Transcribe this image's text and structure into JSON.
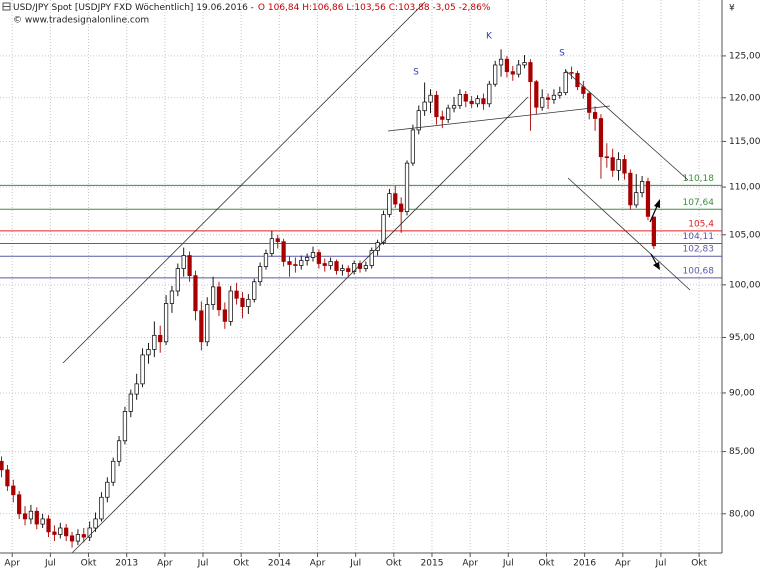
{
  "chart_data": {
    "type": "candlestick",
    "title": "USD/JPY Spot [USDJPY FXD  Wöchentlich] 19.06.2016 -",
    "quote": "O 106,84 H:106,86 L:103,56 C:103,88 -3,05 -2,86%",
    "source": "© www.tradesignalonline.com",
    "y_unit": "¥",
    "annotations": [
      "S",
      "K",
      "S"
    ],
    "x": [
      2012.18,
      2012.2185,
      2012.257,
      2012.2955,
      2012.334,
      2012.3725,
      2012.411,
      2012.4495,
      2012.488,
      2012.5265,
      2012.565,
      2012.6035,
      2012.642,
      2012.6805,
      2012.719,
      2012.7575,
      2012.796,
      2012.8345,
      2012.873,
      2012.9115,
      2012.95,
      2012.9885,
      2013.027,
      2013.0655,
      2013.104,
      2013.1425,
      2013.181,
      2013.2195,
      2013.258,
      2013.2965,
      2013.335,
      2013.3735,
      2013.412,
      2013.4505,
      2013.489,
      2013.5275,
      2013.566,
      2013.6045,
      2013.643,
      2013.6815,
      2013.72,
      2013.7585,
      2013.797,
      2013.8355,
      2013.874,
      2013.9125,
      2013.951,
      2013.9895,
      2014.028,
      2014.0665,
      2014.105,
      2014.1435,
      2014.182,
      2014.2205,
      2014.259,
      2014.2975,
      2014.336,
      2014.3745,
      2014.413,
      2014.4515,
      2014.49,
      2014.5285,
      2014.567,
      2014.6055,
      2014.644,
      2014.6825,
      2014.721,
      2014.7595,
      2014.798,
      2014.8365,
      2014.875,
      2014.9135,
      2014.952,
      2014.9905,
      2015.029,
      2015.0675,
      2015.106,
      2015.1445,
      2015.183,
      2015.2215,
      2015.26,
      2015.2985,
      2015.337,
      2015.3755,
      2015.414,
      2015.4525,
      2015.491,
      2015.5295,
      2015.568,
      2015.6065,
      2015.645,
      2015.6835,
      2015.722,
      2015.7605,
      2015.799,
      2015.8375,
      2015.876,
      2015.9145,
      2015.953,
      2015.9915,
      2016.03,
      2016.0685,
      2016.107,
      2016.1455,
      2016.184,
      2016.2225,
      2016.261,
      2016.2995,
      2016.338,
      2016.3765,
      2016.415,
      2016.4535
    ],
    "open": [
      84.2,
      83.5,
      82.2,
      81.5,
      80.0,
      79.6,
      80.2,
      79.2,
      79.6,
      78.6,
      78.4,
      78.9,
      78.3,
      77.9,
      78.4,
      78.2,
      78.9,
      79.6,
      81.3,
      82.5,
      84.2,
      85.9,
      88.4,
      89.9,
      90.8,
      93.4,
      93.9,
      95.2,
      94.6,
      98.2,
      99.4,
      101.6,
      102.9,
      100.9,
      97.5,
      94.6,
      98.1,
      99.8,
      97.6,
      96.5,
      99.4,
      98.7,
      97.9,
      98.6,
      100.3,
      101.8,
      103.1,
      104.6,
      104.3,
      102.3,
      102.0,
      101.9,
      102.4,
      102.7,
      103.2,
      102.1,
      101.9,
      102.3,
      101.4,
      101.6,
      101.3,
      102.1,
      101.6,
      101.9,
      103.4,
      104.2,
      107.1,
      109.3,
      108.2,
      107.4,
      112.6,
      116.3,
      118.5,
      119.5,
      120.3,
      117.8,
      117.5,
      118.8,
      119.1,
      120.4,
      119.6,
      119.3,
      119.9,
      119.3,
      121.6,
      123.9,
      124.6,
      123.1,
      122.8,
      123.9,
      124.2,
      121.9,
      118.9,
      120.0,
      119.8,
      120.3,
      120.6,
      123.0,
      122.9,
      121.3,
      120.5,
      118.3,
      117.6,
      113.3,
      113.2,
      111.8,
      113.0,
      111.5,
      108.1,
      109.4,
      110.6,
      106.84
    ],
    "high": [
      84.6,
      83.9,
      82.7,
      81.8,
      80.6,
      80.7,
      80.5,
      80.0,
      79.9,
      79.1,
      79.3,
      79.2,
      78.6,
      78.8,
      78.9,
      79.4,
      80.1,
      81.7,
      82.9,
      84.5,
      86.3,
      88.8,
      90.3,
      91.7,
      94.0,
      94.5,
      96.5,
      96.1,
      99.0,
      99.9,
      102.1,
      103.7,
      103.3,
      101.4,
      98.4,
      98.8,
      100.8,
      100.3,
      98.3,
      99.9,
      100.2,
      99.3,
      99.1,
      100.6,
      102.2,
      103.5,
      105.4,
      105.0,
      104.6,
      102.8,
      102.7,
      102.9,
      103.1,
      103.8,
      103.5,
      102.6,
      102.7,
      102.5,
      102.0,
      101.9,
      102.4,
      102.4,
      102.3,
      103.7,
      104.5,
      107.5,
      109.8,
      110.1,
      108.9,
      112.9,
      116.9,
      119.1,
      121.8,
      121.0,
      120.8,
      118.5,
      119.2,
      120.1,
      121.0,
      120.8,
      120.2,
      120.3,
      120.5,
      122.0,
      124.4,
      125.8,
      125.0,
      123.8,
      124.5,
      125.1,
      124.6,
      122.1,
      121.0,
      120.5,
      121.0,
      121.3,
      123.4,
      123.7,
      123.2,
      122.0,
      120.8,
      119.0,
      118.1,
      114.8,
      114.2,
      113.8,
      113.5,
      111.9,
      111.4,
      111.2,
      111.0,
      106.86
    ],
    "low": [
      82.9,
      81.8,
      80.9,
      79.6,
      79.1,
      79.2,
      78.8,
      78.9,
      78.2,
      77.9,
      78.1,
      77.9,
      77.4,
      77.6,
      77.8,
      77.9,
      78.6,
      79.4,
      80.9,
      82.2,
      83.8,
      85.6,
      87.9,
      89.4,
      90.5,
      92.6,
      93.2,
      93.6,
      94.3,
      97.3,
      98.9,
      100.8,
      100.3,
      96.6,
      93.8,
      94.2,
      97.6,
      97.0,
      95.8,
      96.1,
      98.1,
      96.8,
      97.2,
      98.3,
      99.9,
      101.5,
      102.8,
      103.6,
      101.8,
      100.8,
      101.2,
      101.5,
      101.9,
      102.3,
      101.6,
      101.3,
      101.5,
      101.0,
      100.9,
      100.8,
      101.0,
      101.2,
      101.3,
      101.6,
      102.9,
      104.0,
      106.8,
      107.8,
      105.2,
      107.0,
      112.3,
      115.8,
      117.9,
      118.2,
      116.9,
      116.5,
      117.1,
      118.3,
      118.7,
      118.9,
      118.8,
      118.9,
      118.6,
      118.9,
      121.3,
      122.5,
      122.4,
      122.0,
      122.4,
      123.5,
      116.2,
      118.1,
      118.5,
      118.7,
      119.3,
      119.9,
      120.3,
      122.2,
      120.9,
      119.9,
      117.5,
      116.2,
      110.9,
      112.1,
      111.1,
      110.7,
      110.8,
      107.6,
      107.8,
      108.9,
      106.5,
      103.56
    ],
    "close": [
      83.5,
      82.2,
      81.5,
      80.0,
      79.6,
      80.2,
      79.2,
      79.6,
      78.6,
      78.4,
      78.9,
      78.3,
      77.9,
      78.4,
      78.2,
      78.9,
      79.6,
      81.3,
      82.5,
      84.2,
      85.9,
      88.4,
      89.9,
      90.8,
      93.4,
      93.9,
      95.2,
      94.6,
      98.2,
      99.4,
      101.6,
      102.9,
      100.9,
      97.5,
      94.6,
      98.1,
      99.8,
      97.6,
      96.5,
      99.4,
      98.7,
      97.9,
      98.6,
      100.3,
      101.8,
      103.1,
      104.6,
      104.3,
      102.3,
      102.0,
      101.9,
      102.4,
      102.7,
      103.2,
      102.1,
      101.9,
      102.3,
      101.4,
      101.6,
      101.3,
      102.1,
      101.6,
      101.9,
      103.4,
      104.2,
      107.1,
      109.3,
      108.2,
      107.4,
      112.6,
      116.3,
      118.5,
      119.5,
      120.3,
      117.8,
      117.5,
      118.8,
      119.1,
      120.4,
      119.6,
      119.3,
      119.9,
      119.3,
      121.6,
      123.9,
      124.6,
      123.1,
      122.8,
      123.9,
      124.2,
      121.9,
      118.9,
      120.0,
      119.8,
      120.3,
      120.6,
      123.0,
      122.9,
      121.3,
      120.5,
      118.3,
      117.6,
      113.3,
      113.2,
      111.8,
      113.0,
      111.5,
      108.1,
      109.4,
      110.6,
      106.9,
      103.88
    ],
    "up_color": "#ffffff",
    "down_color": "#a80000",
    "outline_color": "#000000",
    "xlim": [
      2012.17,
      2016.9
    ],
    "xticks": [
      {
        "value": 2012.25,
        "label": "Apr"
      },
      {
        "value": 2012.5,
        "label": "Jul"
      },
      {
        "value": 2012.75,
        "label": "Okt"
      },
      2013,
      {
        "value": 2013.25,
        "label": "Apr"
      },
      {
        "value": 2013.5,
        "label": "Jul"
      },
      {
        "value": 2013.75,
        "label": "Okt"
      },
      2014,
      {
        "value": 2014.25,
        "label": "Apr"
      },
      {
        "value": 2014.5,
        "label": "Jul"
      },
      {
        "value": 2014.75,
        "label": "Okt"
      },
      2015,
      {
        "value": 2015.25,
        "label": "Apr"
      },
      {
        "value": 2015.5,
        "label": "Jul"
      },
      {
        "value": 2015.75,
        "label": "Okt"
      },
      2016,
      {
        "value": 2016.25,
        "label": "Apr"
      },
      {
        "value": 2016.5,
        "label": "Jul"
      },
      {
        "value": 2016.75,
        "label": "Okt"
      }
    ],
    "ylim": [
      77,
      132
    ],
    "yticks": [
      {
        "value": 80,
        "label": "80,00"
      },
      {
        "value": 85,
        "label": "85,00"
      },
      {
        "value": 90,
        "label": "90,00"
      },
      {
        "value": 95,
        "label": "95,00"
      },
      {
        "value": 100,
        "label": "100,00"
      },
      {
        "value": 105,
        "label": "105,00"
      },
      {
        "value": 110,
        "label": "110,00"
      },
      {
        "value": 115,
        "label": "115,00"
      },
      {
        "value": 120,
        "label": "120,00"
      },
      {
        "value": 125,
        "label": "125,00"
      }
    ],
    "log_scale": true,
    "grid": true,
    "levels": [
      {
        "value": 110.18,
        "label": "110,18",
        "color": "#3a8f3a"
      },
      {
        "value": 107.64,
        "label": "107,64",
        "color": "#3a8f3a"
      },
      {
        "value": 105.4,
        "label": "105,4",
        "color": "#e02020"
      },
      {
        "value": 104.11,
        "label": "104,11",
        "color": "#5a5aa8"
      },
      {
        "value": 102.83,
        "label": "102,83",
        "color": "#5a5aa8"
      },
      {
        "value": 100.68,
        "label": "100,68",
        "color": "#5a5aa8"
      }
    ]
  }
}
